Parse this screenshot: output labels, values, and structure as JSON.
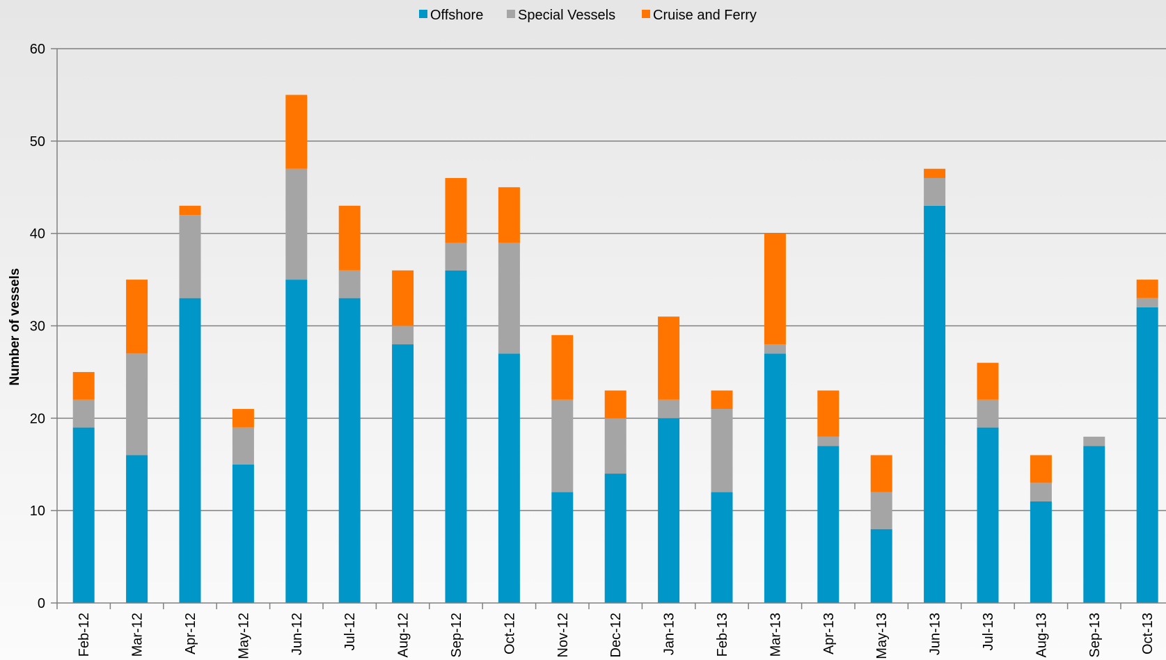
{
  "chart_data": {
    "type": "bar",
    "stacked": true,
    "title": "",
    "xlabel": "",
    "ylabel": "Number of vessels",
    "ylim": [
      0,
      60
    ],
    "yticks": [
      0,
      10,
      20,
      30,
      40,
      50,
      60
    ],
    "grid": true,
    "legend_position": "top-center",
    "categories": [
      "Feb-12",
      "Mar-12",
      "Apr-12",
      "May-12",
      "Jun-12",
      "Jul-12",
      "Aug-12",
      "Sep-12",
      "Oct-12",
      "Nov-12",
      "Dec-12",
      "Jan-13",
      "Feb-13",
      "Mar-13",
      "Apr-13",
      "May-13",
      "Jun-13",
      "Jul-13",
      "Aug-13",
      "Sep-13",
      "Oct-13"
    ],
    "series": [
      {
        "name": "Offshore",
        "color": "#0096c8",
        "values": [
          19,
          16,
          33,
          15,
          35,
          33,
          28,
          36,
          27,
          12,
          14,
          20,
          12,
          27,
          17,
          8,
          43,
          19,
          11,
          17,
          32
        ]
      },
      {
        "name": "Special Vessels",
        "color": "#a5a5a5",
        "values": [
          3,
          11,
          9,
          4,
          12,
          3,
          2,
          3,
          12,
          10,
          6,
          2,
          9,
          1,
          1,
          4,
          3,
          3,
          2,
          1,
          1
        ]
      },
      {
        "name": "Cruise and Ferry",
        "color": "#ff7500",
        "values": [
          3,
          8,
          1,
          2,
          8,
          7,
          6,
          7,
          6,
          7,
          3,
          9,
          2,
          12,
          5,
          4,
          1,
          4,
          3,
          0,
          2
        ]
      }
    ],
    "colors": {
      "gridline": "#808080",
      "axis": "#808080",
      "text": "#000000"
    }
  }
}
